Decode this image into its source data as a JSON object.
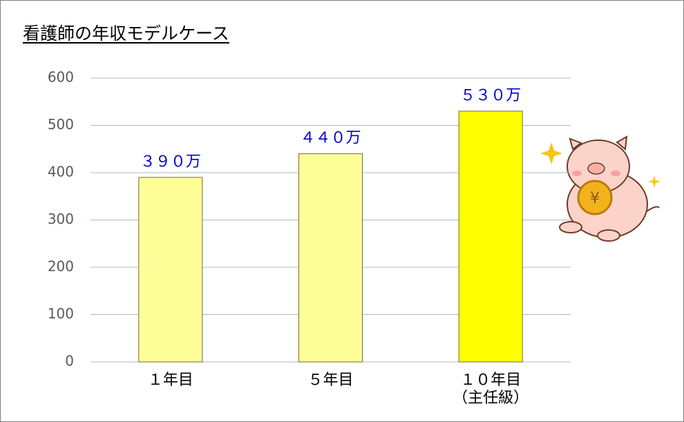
{
  "chart_data": {
    "type": "bar",
    "title": "看護師の年収モデルケース",
    "categories": [
      "１年目",
      "５年目",
      "１０年目\n（主任級）"
    ],
    "values": [
      390,
      440,
      530
    ],
    "value_labels": [
      "３９０万",
      "４４０万",
      "５３０万"
    ],
    "colors": [
      "#ffff99",
      "#ffff99",
      "#ffff00"
    ],
    "ylim": [
      0,
      600
    ],
    "yticks": [
      0,
      100,
      200,
      300,
      400,
      500,
      600
    ],
    "grid": true
  }
}
